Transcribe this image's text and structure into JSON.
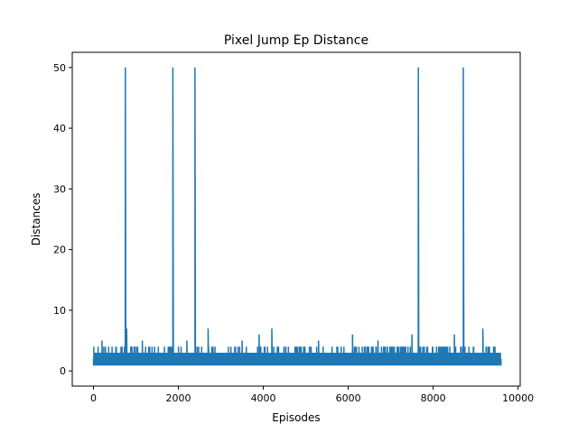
{
  "chart_data": {
    "type": "line",
    "title": "Pixel Jump Ep Distance",
    "xlabel": "Episodes",
    "ylabel": "Distances",
    "xlim": [
      -500,
      10050
    ],
    "ylim": [
      -2.5,
      52.5
    ],
    "xticks": [
      0,
      2000,
      4000,
      6000,
      8000,
      10000
    ],
    "yticks": [
      0,
      10,
      20,
      30,
      40,
      50
    ],
    "grid": false,
    "series": [
      {
        "color": "#1f77b4",
        "n_points": 9600,
        "baseline": 1,
        "typical_range": [
          1,
          4
        ],
        "spikes": [
          {
            "x": 750,
            "y": 50
          },
          {
            "x": 1870,
            "y": 50
          },
          {
            "x": 2390,
            "y": 50
          },
          {
            "x": 7650,
            "y": 50
          },
          {
            "x": 8710,
            "y": 50
          },
          {
            "x": 780,
            "y": 7
          },
          {
            "x": 2700,
            "y": 7
          },
          {
            "x": 4200,
            "y": 7
          },
          {
            "x": 9170,
            "y": 7
          },
          {
            "x": 3900,
            "y": 6
          },
          {
            "x": 6100,
            "y": 6
          },
          {
            "x": 7500,
            "y": 6
          },
          {
            "x": 8500,
            "y": 6
          },
          {
            "x": 200,
            "y": 5
          },
          {
            "x": 1150,
            "y": 5
          },
          {
            "x": 2200,
            "y": 5
          },
          {
            "x": 3500,
            "y": 5
          },
          {
            "x": 5300,
            "y": 5
          },
          {
            "x": 6700,
            "y": 5
          }
        ]
      }
    ]
  }
}
